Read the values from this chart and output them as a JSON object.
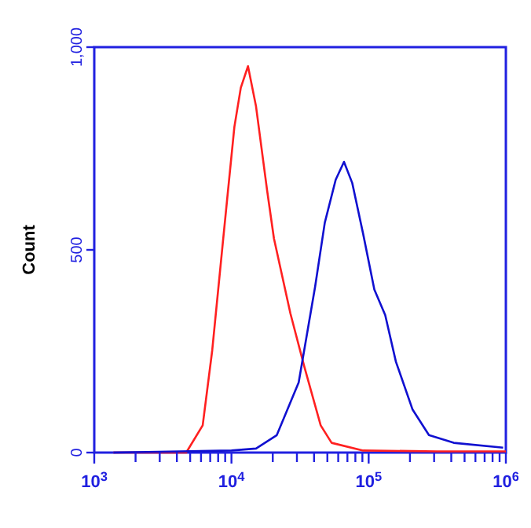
{
  "chart_data": {
    "type": "line",
    "ylabel": "Count",
    "log": "x",
    "xlim": [
      1000,
      1000000
    ],
    "ylim": [
      0,
      1000
    ],
    "xticks": [
      {
        "value": 1000,
        "label": "10$^{3}$"
      },
      {
        "value": 2000,
        "label": null
      },
      {
        "value": 3000,
        "label": null
      },
      {
        "value": 4000,
        "label": null
      },
      {
        "value": 5000,
        "label": null
      },
      {
        "value": 6000,
        "label": null
      },
      {
        "value": 7000,
        "label": null
      },
      {
        "value": 8000,
        "label": null
      },
      {
        "value": 9000,
        "label": null
      },
      {
        "value": 10000,
        "label": "10$^{4}$"
      },
      {
        "value": 20000,
        "label": null
      },
      {
        "value": 30000,
        "label": null
      },
      {
        "value": 40000,
        "label": null
      },
      {
        "value": 50000,
        "label": null
      },
      {
        "value": 60000,
        "label": null
      },
      {
        "value": 70000,
        "label": null
      },
      {
        "value": 80000,
        "label": null
      },
      {
        "value": 90000,
        "label": null
      },
      {
        "value": 100000,
        "label": "10$^{5}$"
      },
      {
        "value": 200000,
        "label": null
      },
      {
        "value": 300000,
        "label": null
      },
      {
        "value": 400000,
        "label": null
      },
      {
        "value": 500000,
        "label": null
      },
      {
        "value": 600000,
        "label": null
      },
      {
        "value": 700000,
        "label": null
      },
      {
        "value": 800000,
        "label": null
      },
      {
        "value": 900000,
        "label": null
      },
      {
        "value": 1000000,
        "label": "10$^{6}$"
      }
    ],
    "yticks": [
      0,
      500,
      {
        "value": 1000,
        "label": "1,000"
      }
    ],
    "grid": false,
    "marker": "none",
    "line_style": "solid",
    "series": [
      {
        "color": "#ff2020",
        "x": [
          1380,
          4680,
          6170,
          7240,
          8710,
          10500,
          11700,
          13200,
          15100,
          18200,
          20400,
          26900,
          33900,
          44700,
          53700,
          91200,
          316000,
          1000000
        ],
        "values": [
          0,
          0,
          67,
          252,
          528,
          803,
          900,
          953,
          854,
          646,
          528,
          343,
          213,
          67,
          24,
          5,
          3,
          3
        ]
      },
      {
        "color": "#1010d0",
        "x": [
          1380,
          10000,
          15100,
          21400,
          30900,
          40700,
          47900,
          57500,
          66100,
          75900,
          91200,
          110000,
          132000,
          158000,
          209000,
          275000,
          417000,
          955000
        ],
        "values": [
          0,
          5,
          10,
          43,
          173,
          409,
          567,
          673,
          717,
          665,
          539,
          402,
          339,
          224,
          106,
          43,
          24,
          12
        ]
      }
    ]
  }
}
